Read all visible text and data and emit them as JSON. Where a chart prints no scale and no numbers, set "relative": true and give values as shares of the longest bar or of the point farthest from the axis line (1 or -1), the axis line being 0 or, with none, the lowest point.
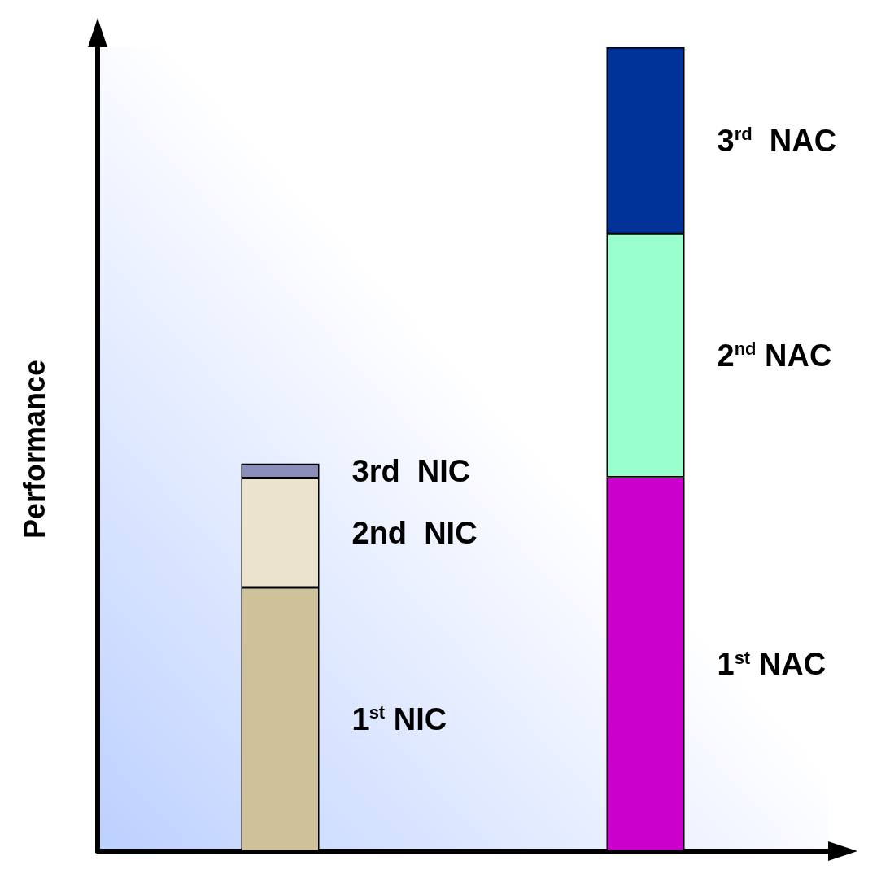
{
  "chart_data": {
    "type": "bar",
    "stacked": true,
    "relative": true,
    "ylabel": "Performance",
    "categories": [
      null,
      null
    ],
    "legend": false,
    "grid": false,
    "series": [
      {
        "name": "1$^{st}$ NIC",
        "color": "#cfc29a",
        "values": [
          0.328,
          null
        ]
      },
      {
        "name": "2nd  NIC",
        "color": "#ebe3cc",
        "values": [
          0.136,
          null
        ]
      },
      {
        "name": "3rd  NIC",
        "color": "#8a8eb8",
        "values": [
          0.018,
          null
        ]
      },
      {
        "name": "1$^{st}$ NAC",
        "color": "#cc00cc",
        "values": [
          null,
          0.465
        ]
      },
      {
        "name": "2$^{nd}$ NAC",
        "color": "#99ffcc",
        "values": [
          null,
          0.303
        ]
      },
      {
        "name": "3$^{rd}$  NAC",
        "color": "#003399",
        "values": [
          null,
          0.232
        ]
      }
    ]
  }
}
